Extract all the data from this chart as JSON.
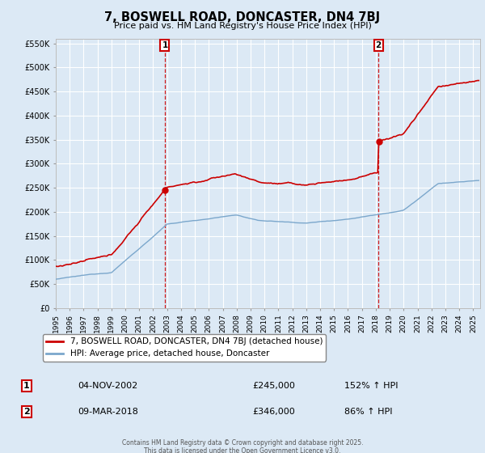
{
  "title": "7, BOSWELL ROAD, DONCASTER, DN4 7BJ",
  "subtitle": "Price paid vs. HM Land Registry's House Price Index (HPI)",
  "background_color": "#dce9f5",
  "plot_bg_color": "#dce9f5",
  "grid_color": "#ffffff",
  "ylim": [
    0,
    560000
  ],
  "yticks": [
    0,
    50000,
    100000,
    150000,
    200000,
    250000,
    300000,
    350000,
    400000,
    450000,
    500000,
    550000
  ],
  "xlim_start": 1995.0,
  "xlim_end": 2025.5,
  "t1": 2002.84,
  "t2": 2018.19,
  "price1": 245000,
  "price2": 346000,
  "marker1_label": "1",
  "marker2_label": "2",
  "legend_line1": "7, BOSWELL ROAD, DONCASTER, DN4 7BJ (detached house)",
  "legend_line2": "HPI: Average price, detached house, Doncaster",
  "annotation1_date": "04-NOV-2002",
  "annotation1_price": "£245,000",
  "annotation1_hpi": "152% ↑ HPI",
  "annotation2_date": "09-MAR-2018",
  "annotation2_price": "£346,000",
  "annotation2_hpi": "86% ↑ HPI",
  "footer": "Contains HM Land Registry data © Crown copyright and database right 2025.\nThis data is licensed under the Open Government Licence v3.0.",
  "red_line_color": "#cc0000",
  "blue_line_color": "#7ba7cc",
  "marker_box_color": "#cc0000"
}
